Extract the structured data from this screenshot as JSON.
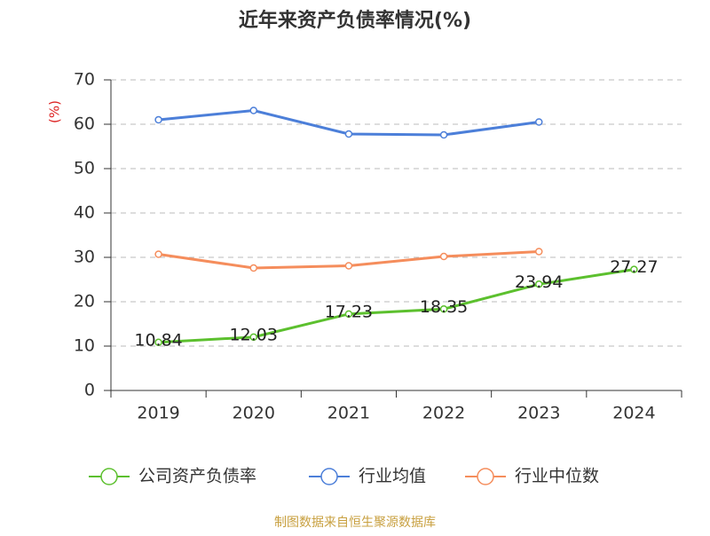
{
  "chart_data": {
    "type": "line",
    "title": "近年来资产负债率情况(%)",
    "y_label": "(%)",
    "categories": [
      "2019",
      "2020",
      "2021",
      "2022",
      "2023",
      "2024"
    ],
    "series": [
      {
        "name": "公司资产负债率",
        "color": "#5cc02e",
        "values": [
          10.84,
          12.03,
          17.23,
          18.35,
          23.94,
          27.27
        ],
        "show_labels": true
      },
      {
        "name": "行业均值",
        "color": "#4c7fd9",
        "values": [
          61.0,
          63.1,
          57.8,
          57.6,
          60.5,
          null
        ]
      },
      {
        "name": "行业中位数",
        "color": "#f58d5c",
        "values": [
          30.7,
          27.6,
          28.1,
          30.2,
          31.3,
          null
        ]
      }
    ],
    "ylim": [
      0,
      70
    ],
    "yticks": [
      0,
      10,
      20,
      30,
      40,
      50,
      60,
      70
    ],
    "grid": true,
    "source": "制图数据来自恒生聚源数据库"
  }
}
